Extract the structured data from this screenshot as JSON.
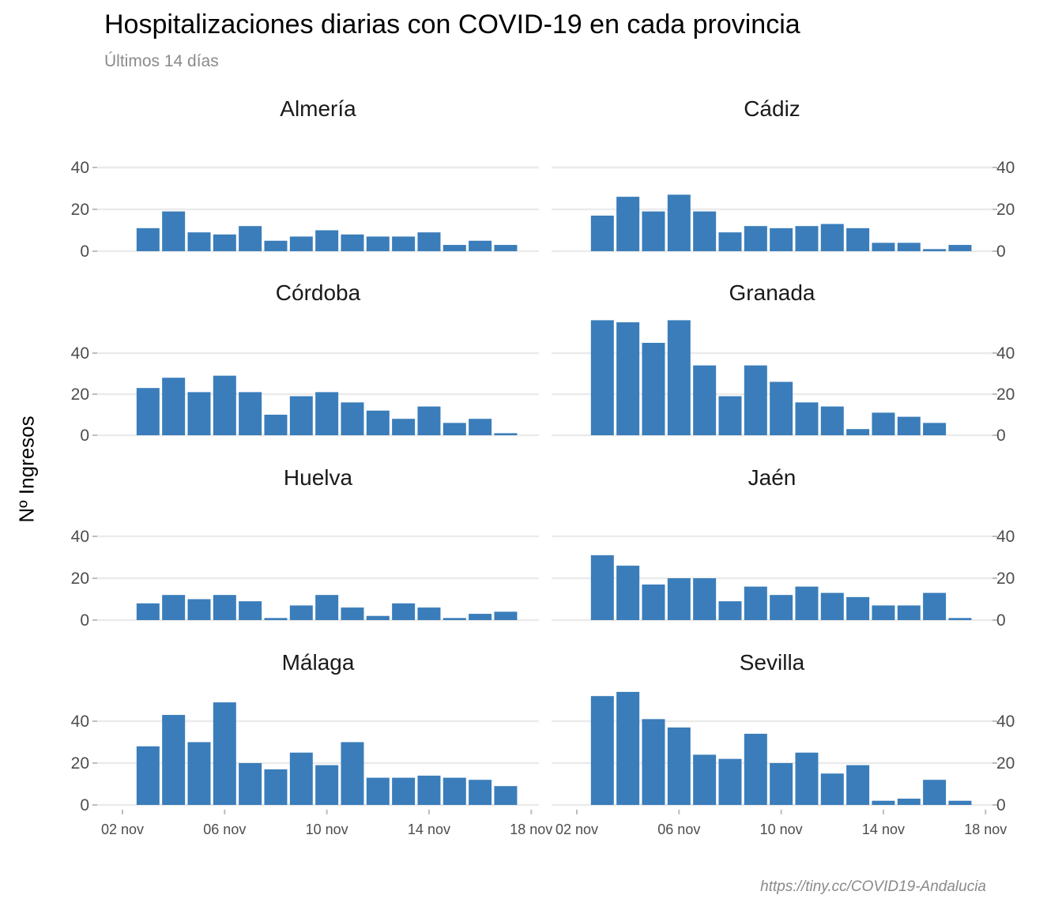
{
  "header": {
    "title": "Hospitalizaciones diarias con COVID-19 en cada provincia",
    "subtitle": "Últimos 14 días"
  },
  "caption": "https://tiny.cc/COVID19-Andalucia",
  "colors": {
    "bar": "#3A7DBA",
    "grid": "#EBEBEB",
    "axis_text": "#4D4D4D"
  },
  "chart_data": {
    "type": "bar",
    "layout": "facet-grid-2-columns",
    "ylabel": "Nº Ingresos",
    "x_dates": [
      "03 nov",
      "04 nov",
      "05 nov",
      "06 nov",
      "07 nov",
      "08 nov",
      "09 nov",
      "10 nov",
      "11 nov",
      "12 nov",
      "13 nov",
      "14 nov",
      "15 nov",
      "16 nov",
      "17 nov"
    ],
    "x_ticks": [
      "02 nov",
      "06 nov",
      "10 nov",
      "14 nov",
      "18 nov"
    ],
    "x_range": [
      "01 nov",
      "18 nov"
    ],
    "y_ticks": [
      0,
      20,
      40
    ],
    "facets": [
      {
        "name": "Almería",
        "ylim": [
          0,
          48
        ],
        "y_axis": "left",
        "values": [
          11,
          19,
          9,
          8,
          12,
          5,
          7,
          10,
          8,
          7,
          7,
          9,
          3,
          5,
          3
        ]
      },
      {
        "name": "Cádiz",
        "ylim": [
          0,
          48
        ],
        "y_axis": "right",
        "values": [
          17,
          26,
          19,
          27,
          19,
          9,
          12,
          11,
          12,
          13,
          11,
          4,
          4,
          1,
          3
        ]
      },
      {
        "name": "Córdoba",
        "ylim": [
          0,
          62
        ],
        "y_axis": "left",
        "values": [
          23,
          28,
          21,
          29,
          21,
          10,
          19,
          21,
          16,
          12,
          8,
          14,
          6,
          8,
          1
        ]
      },
      {
        "name": "Granada",
        "ylim": [
          0,
          62
        ],
        "y_axis": "right",
        "values": [
          56,
          55,
          45,
          56,
          34,
          19,
          34,
          26,
          16,
          14,
          3,
          11,
          9,
          6,
          0
        ]
      },
      {
        "name": "Huelva",
        "ylim": [
          0,
          48
        ],
        "y_axis": "left",
        "values": [
          8,
          12,
          10,
          12,
          9,
          1,
          7,
          12,
          6,
          2,
          8,
          6,
          1,
          3,
          4
        ]
      },
      {
        "name": "Jaén",
        "ylim": [
          0,
          48
        ],
        "y_axis": "right",
        "values": [
          31,
          26,
          17,
          20,
          20,
          9,
          16,
          12,
          16,
          13,
          11,
          7,
          7,
          13,
          1
        ]
      },
      {
        "name": "Málaga",
        "ylim": [
          0,
          58
        ],
        "y_axis": "left",
        "values": [
          28,
          43,
          30,
          49,
          20,
          17,
          25,
          19,
          30,
          13,
          13,
          14,
          13,
          12,
          9
        ]
      },
      {
        "name": "Sevilla",
        "ylim": [
          0,
          58
        ],
        "y_axis": "right",
        "values": [
          52,
          54,
          41,
          37,
          24,
          22,
          34,
          20,
          25,
          15,
          19,
          2,
          3,
          12,
          2
        ]
      }
    ]
  }
}
